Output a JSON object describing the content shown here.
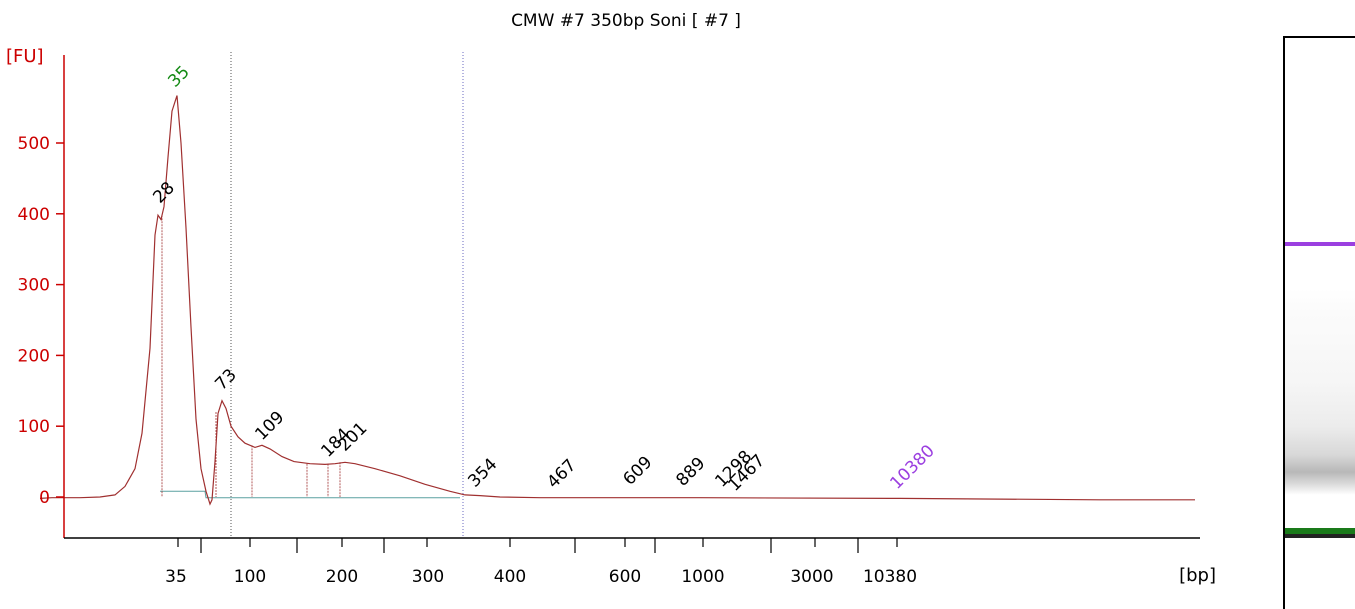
{
  "chart_data": {
    "type": "line",
    "title": "CMW #7 350bp Soni  [ #7 ]",
    "ylabel": "[FU]",
    "xlabel": "[bp]",
    "ylim": [
      -60,
      620
    ],
    "yticks": [
      0,
      100,
      200,
      300,
      400,
      500
    ],
    "xtick_labels": [
      "35",
      "100",
      "200",
      "300",
      "400",
      "600",
      "1000",
      "3000",
      "10380"
    ],
    "grid": false,
    "legend": "none",
    "series": [
      {
        "values_fu": [
          [
            40,
            -2
          ],
          [
            52,
            -1
          ],
          [
            80,
            -1
          ],
          [
            100,
            0
          ],
          [
            115,
            3
          ],
          [
            125,
            15
          ],
          [
            135,
            40
          ],
          [
            142,
            90
          ],
          [
            150,
            210
          ],
          [
            155,
            370
          ],
          [
            158,
            398
          ],
          [
            161,
            392
          ],
          [
            164,
            410
          ],
          [
            168,
            480
          ],
          [
            172,
            545
          ],
          [
            177,
            567
          ],
          [
            181,
            500
          ],
          [
            186,
            380
          ],
          [
            191,
            240
          ],
          [
            196,
            110
          ],
          [
            201,
            40
          ],
          [
            206,
            8
          ],
          [
            210,
            -10
          ],
          [
            212,
            -4
          ],
          [
            215,
            50
          ],
          [
            218,
            118
          ],
          [
            222,
            136
          ],
          [
            226,
            125
          ],
          [
            231,
            100
          ],
          [
            238,
            85
          ],
          [
            245,
            76
          ],
          [
            255,
            70
          ],
          [
            262,
            73
          ],
          [
            270,
            68
          ],
          [
            282,
            57
          ],
          [
            294,
            50
          ],
          [
            310,
            47
          ],
          [
            325,
            46
          ],
          [
            335,
            47
          ],
          [
            345,
            49
          ],
          [
            355,
            47
          ],
          [
            375,
            40
          ],
          [
            400,
            30
          ],
          [
            425,
            18
          ],
          [
            450,
            8
          ],
          [
            465,
            3
          ],
          [
            480,
            2
          ],
          [
            500,
            0
          ],
          [
            540,
            -1
          ],
          [
            700,
            -1
          ],
          [
            900,
            -2
          ],
          [
            1000,
            -3
          ],
          [
            1100,
            -4
          ],
          [
            1195,
            -4
          ]
        ],
        "baseline_fu": [
          [
            160,
            8
          ],
          [
            205,
            8
          ],
          [
            206,
            -1
          ],
          [
            460,
            -1
          ]
        ]
      }
    ],
    "peaks": [
      {
        "label": "28",
        "value": 398,
        "color": "#000000"
      },
      {
        "label": "35",
        "value": 567,
        "color": "#138a13"
      },
      {
        "label": "73",
        "value": 136,
        "color": "#000000"
      },
      {
        "label": "109",
        "value": 73,
        "color": "#000000"
      },
      {
        "label": "184",
        "value": 47,
        "color": "#000000"
      },
      {
        "label": "201",
        "value": 49,
        "color": "#000000"
      },
      {
        "label": "354",
        "value": 3,
        "color": "#000000"
      },
      {
        "label": "467",
        "value": 0,
        "color": "#000000"
      },
      {
        "label": "609",
        "value": 0,
        "color": "#000000"
      },
      {
        "label": "889",
        "value": 0,
        "color": "#000000"
      },
      {
        "label": "1298",
        "value": 0,
        "color": "#000000"
      },
      {
        "label": "1467",
        "value": 0,
        "color": "#000000"
      },
      {
        "label": "10380",
        "value": 0,
        "color": "#9b3fe0"
      }
    ],
    "colors": {
      "trace": "#a03030",
      "axis": "#cc0000",
      "baseline": "#5aa0a0",
      "marker_lower": "#000000",
      "marker_upper": "#9b3fe0",
      "gel_upper_band": "#9b3fe0",
      "gel_lower_band": "#1a7a1a"
    }
  }
}
